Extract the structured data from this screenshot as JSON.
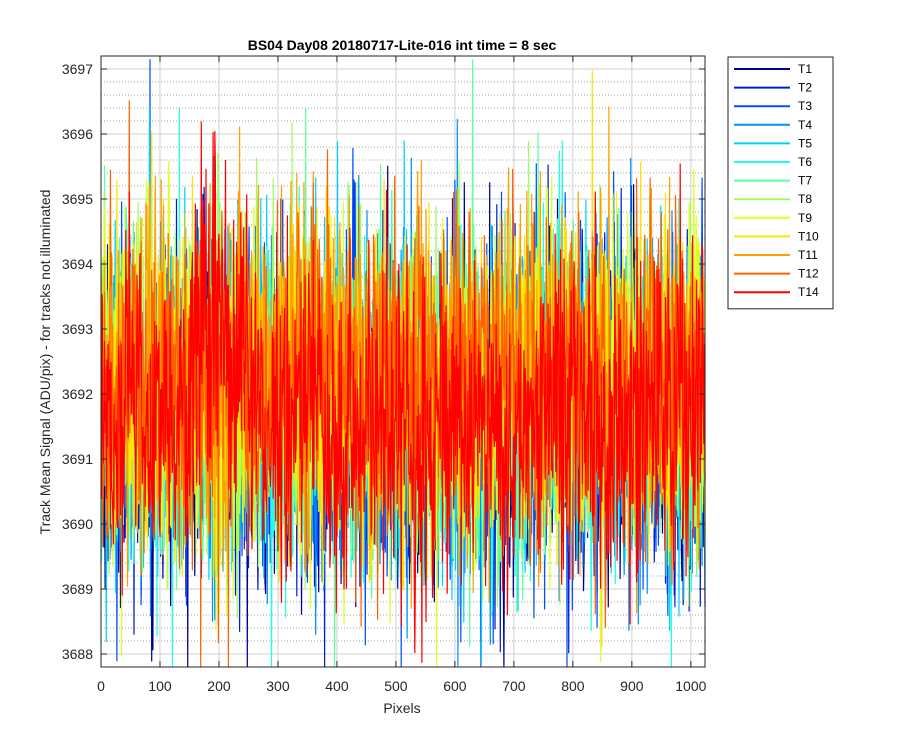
{
  "chart_data": {
    "type": "line",
    "title": "BS04 Day08 20180717-Lite-016 int time = 8 sec",
    "xlabel": "Pixels",
    "ylabel": "Track Mean Signal (ADU/pix) - for tracks not illuminated",
    "xlim": [
      0,
      1024
    ],
    "ylim": [
      3687.8,
      3697.2
    ],
    "x_ticks": [
      0,
      100,
      200,
      300,
      400,
      500,
      600,
      700,
      800,
      900,
      1000
    ],
    "y_ticks": [
      3688,
      3689,
      3690,
      3691,
      3692,
      3693,
      3694,
      3695,
      3696,
      3697
    ],
    "y_minor_step": 0.2,
    "grid": "major and minor (dotted)",
    "legend_position": "outside-right",
    "series": [
      {
        "name": "T1",
        "color": "#00008f",
        "mean": 3691.6
      },
      {
        "name": "T2",
        "color": "#0020d0",
        "mean": 3691.7
      },
      {
        "name": "T3",
        "color": "#0050ff",
        "mean": 3691.8
      },
      {
        "name": "T4",
        "color": "#0090ff",
        "mean": 3691.7
      },
      {
        "name": "T5",
        "color": "#00d0ff",
        "mean": 3691.9
      },
      {
        "name": "T6",
        "color": "#20ffdf",
        "mean": 3691.8
      },
      {
        "name": "T7",
        "color": "#60ffa0",
        "mean": 3692.0
      },
      {
        "name": "T8",
        "color": "#9fff60",
        "mean": 3692.0
      },
      {
        "name": "T9",
        "color": "#dfff20",
        "mean": 3692.1
      },
      {
        "name": "T10",
        "color": "#ffe000",
        "mean": 3692.1
      },
      {
        "name": "T11",
        "color": "#ffa000",
        "mean": 3692.3
      },
      {
        "name": "T12",
        "color": "#ff6000",
        "mean": 3692.2
      },
      {
        "name": "T14",
        "color": "#ff0000",
        "mean": 3691.6
      }
    ]
  }
}
